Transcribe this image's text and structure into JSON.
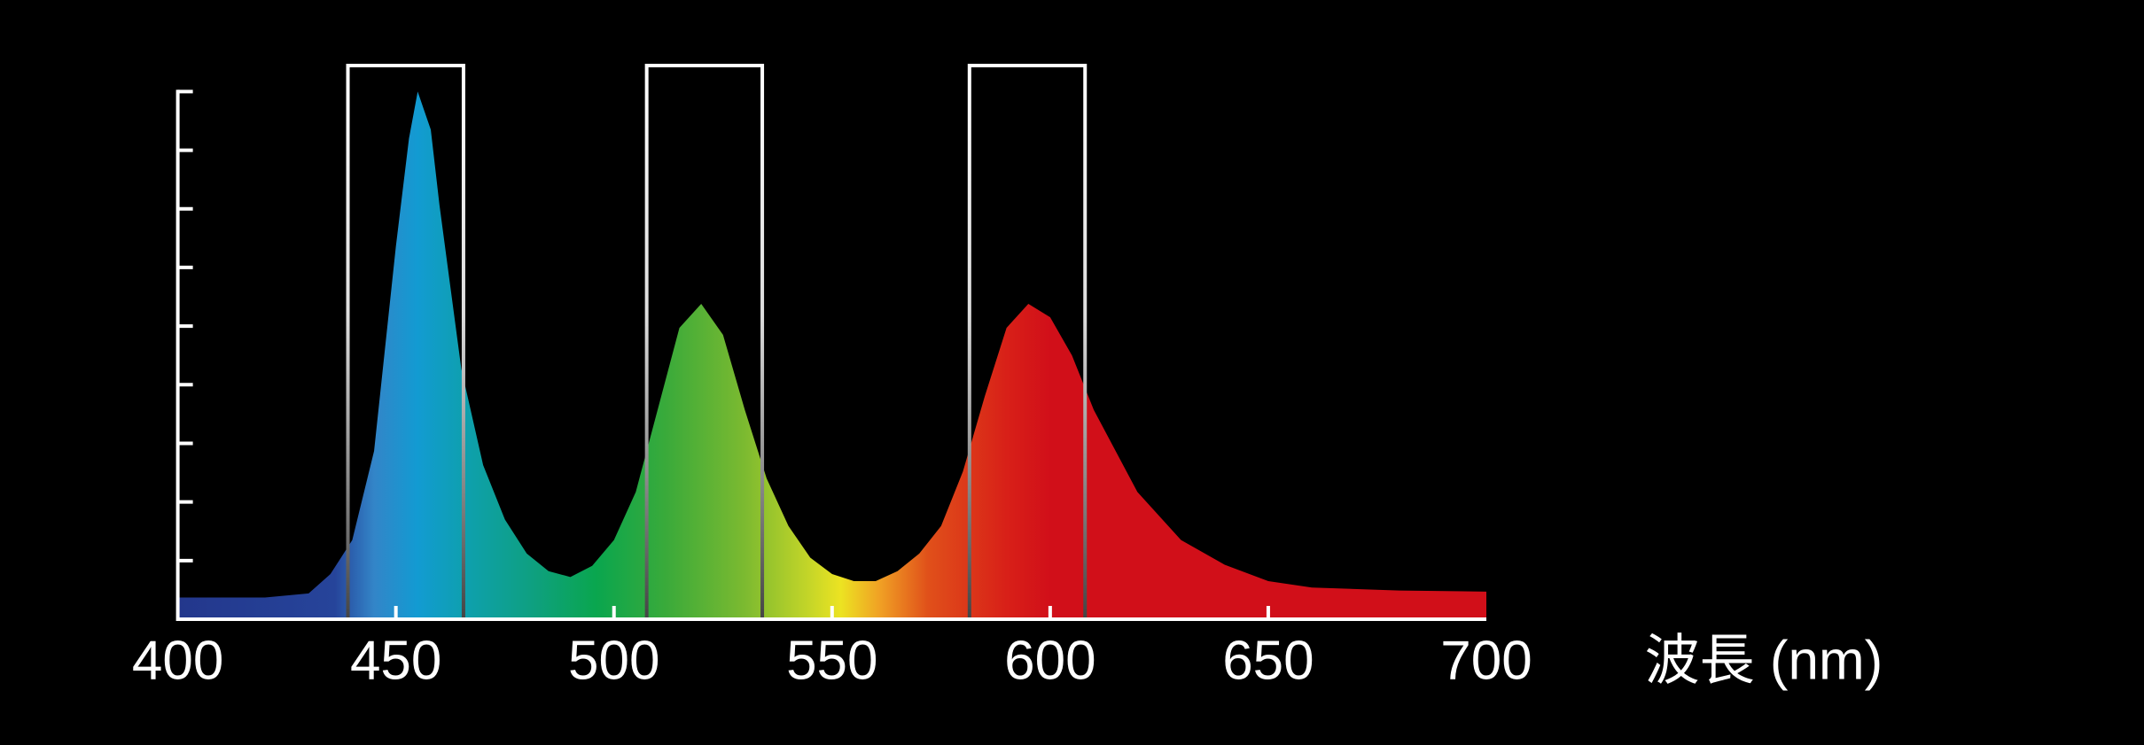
{
  "chart_data": {
    "type": "area",
    "x": [
      400,
      420,
      430,
      435,
      440,
      445,
      450,
      453,
      455,
      458,
      460,
      465,
      470,
      475,
      480,
      485,
      490,
      495,
      500,
      505,
      510,
      515,
      520,
      525,
      530,
      535,
      540,
      545,
      550,
      555,
      560,
      565,
      570,
      575,
      580,
      585,
      590,
      595,
      600,
      605,
      610,
      620,
      630,
      640,
      650,
      660,
      680,
      700
    ],
    "values": [
      0.37,
      0.37,
      0.44,
      0.77,
      1.35,
      2.87,
      6.36,
      8.2,
      9.0,
      8.35,
      7.06,
      4.27,
      2.63,
      1.7,
      1.12,
      0.82,
      0.72,
      0.91,
      1.35,
      2.17,
      3.57,
      4.97,
      5.38,
      4.85,
      3.57,
      2.4,
      1.59,
      1.05,
      0.77,
      0.65,
      0.65,
      0.82,
      1.12,
      1.59,
      2.52,
      3.8,
      4.97,
      5.38,
      5.15,
      4.5,
      3.57,
      2.17,
      1.35,
      0.93,
      0.65,
      0.54,
      0.49,
      0.47
    ],
    "fill_gradient": [
      {
        "x": 400,
        "color": "#23378c"
      },
      {
        "x": 436,
        "color": "#26449a"
      },
      {
        "x": 445,
        "color": "#3385c8"
      },
      {
        "x": 455,
        "color": "#129bd2"
      },
      {
        "x": 466,
        "color": "#0ea0ae"
      },
      {
        "x": 482,
        "color": "#0ea07e"
      },
      {
        "x": 496,
        "color": "#0aa64e"
      },
      {
        "x": 512,
        "color": "#3aaa3a"
      },
      {
        "x": 530,
        "color": "#7cba30"
      },
      {
        "x": 545,
        "color": "#c6d628"
      },
      {
        "x": 552,
        "color": "#ece322"
      },
      {
        "x": 561,
        "color": "#f0a024"
      },
      {
        "x": 572,
        "color": "#e0501a"
      },
      {
        "x": 590,
        "color": "#d82018"
      },
      {
        "x": 600,
        "color": "#d10f19"
      },
      {
        "x": 700,
        "color": "#d10f19"
      }
    ],
    "highlight_ranges": [
      [
        439,
        465.5
      ],
      [
        507.5,
        534
      ],
      [
        581.5,
        608
      ]
    ],
    "xlabel": "波長 (nm)",
    "xlim": [
      400,
      700
    ],
    "xticks": [
      400,
      450,
      500,
      550,
      600,
      650,
      700
    ],
    "ylim": [
      0,
      9
    ],
    "yticks": [
      1,
      2,
      3,
      4,
      5,
      6,
      7,
      8,
      9
    ]
  }
}
